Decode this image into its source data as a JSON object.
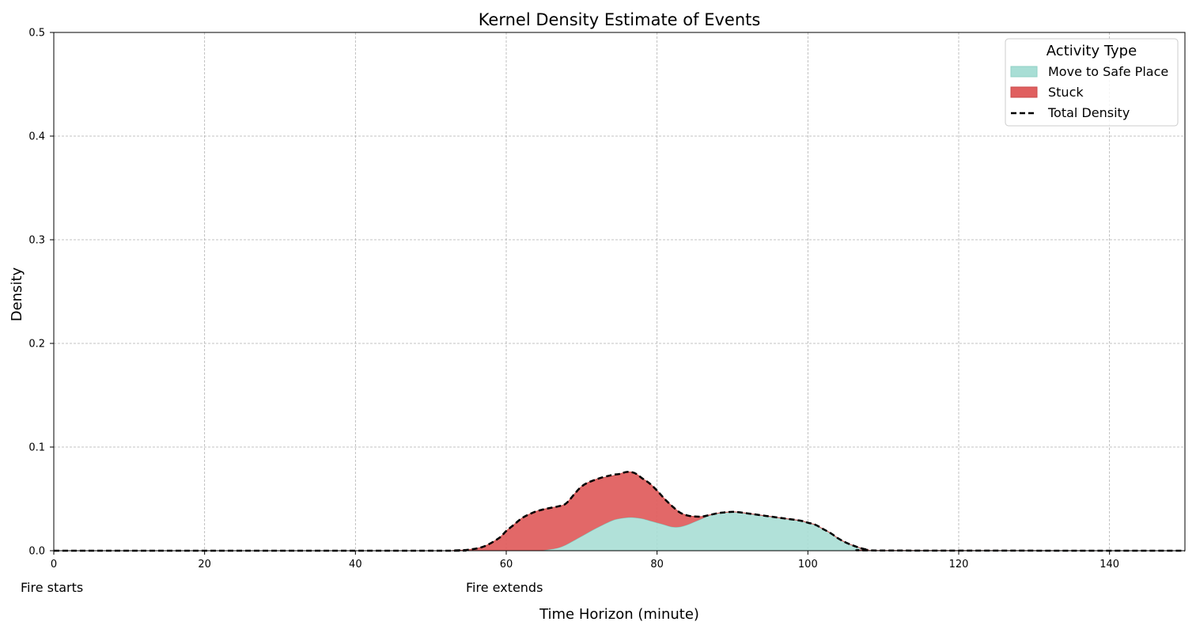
{
  "chart_data": {
    "type": "area",
    "title": "Kernel Density Estimate of Events",
    "xlabel": "Time Horizon (minute)",
    "ylabel": "Density",
    "xlim": [
      0,
      150
    ],
    "ylim": [
      0,
      0.5
    ],
    "x_ticks": [
      0,
      20,
      40,
      60,
      80,
      100,
      120,
      140
    ],
    "y_ticks": [
      0.0,
      0.1,
      0.2,
      0.3,
      0.4,
      0.5
    ],
    "x_tick_labels": [
      "0",
      "20",
      "40",
      "60",
      "80",
      "100",
      "120",
      "140"
    ],
    "y_tick_labels": [
      "0.0",
      "0.1",
      "0.2",
      "0.3",
      "0.4",
      "0.5"
    ],
    "grid": true,
    "stacked": true,
    "legend": {
      "title": "Activity Type",
      "placement": "top-right",
      "entries": [
        {
          "label": "Move to Safe Place",
          "kind": "fill",
          "color": "#a8ded5"
        },
        {
          "label": "Stuck",
          "kind": "fill",
          "color": "#e06060"
        },
        {
          "label": "Total Density",
          "kind": "dashed-line",
          "color": "#000000"
        }
      ]
    },
    "annotations": [
      {
        "text": "Fire starts",
        "x": 0
      },
      {
        "text": "Fire extends",
        "x": 60
      }
    ],
    "x": [
      0,
      50,
      53,
      55,
      57,
      59,
      60,
      61,
      62,
      63,
      64,
      65,
      66,
      67,
      68,
      70,
      72,
      74,
      75,
      76,
      77,
      78,
      79,
      80,
      81,
      82,
      83,
      84,
      85,
      86,
      87,
      88,
      89,
      90,
      91,
      92,
      93,
      95,
      97,
      99,
      100,
      101,
      102,
      103,
      104,
      105,
      106,
      107,
      108,
      110,
      150
    ],
    "series": [
      {
        "name": "Move to Safe Place",
        "color": "#a8ded5",
        "values": [
          0,
          0,
          0,
          0,
          0,
          0,
          0,
          0,
          0,
          0,
          0,
          0.0005,
          0.0015,
          0.003,
          0.006,
          0.014,
          0.022,
          0.029,
          0.031,
          0.032,
          0.032,
          0.031,
          0.029,
          0.027,
          0.025,
          0.023,
          0.023,
          0.025,
          0.028,
          0.031,
          0.034,
          0.036,
          0.037,
          0.0375,
          0.037,
          0.036,
          0.035,
          0.033,
          0.031,
          0.029,
          0.027,
          0.025,
          0.021,
          0.017,
          0.012,
          0.008,
          0.005,
          0.0025,
          0.001,
          0.0002,
          0
        ]
      },
      {
        "name": "Stuck",
        "color": "#e06060",
        "values": [
          0,
          0,
          0.0003,
          0.001,
          0.004,
          0.012,
          0.019,
          0.025,
          0.031,
          0.035,
          0.038,
          0.0395,
          0.04,
          0.04,
          0.04,
          0.048,
          0.047,
          0.043,
          0.043,
          0.044,
          0.043,
          0.039,
          0.036,
          0.031,
          0.025,
          0.02,
          0.014,
          0.009,
          0.005,
          0.002,
          0.0005,
          0.0001,
          0,
          0,
          0,
          0,
          0,
          0,
          0,
          0,
          0,
          0,
          0,
          0,
          0,
          0,
          0,
          0,
          0,
          0,
          0
        ]
      }
    ],
    "total_density": {
      "name": "Total Density",
      "color": "#000000",
      "values": [
        0,
        0,
        0.0003,
        0.001,
        0.004,
        0.012,
        0.019,
        0.025,
        0.031,
        0.035,
        0.038,
        0.04,
        0.0415,
        0.043,
        0.046,
        0.062,
        0.069,
        0.073,
        0.074,
        0.076,
        0.075,
        0.07,
        0.065,
        0.058,
        0.05,
        0.043,
        0.037,
        0.034,
        0.033,
        0.033,
        0.0345,
        0.0361,
        0.037,
        0.0375,
        0.037,
        0.036,
        0.035,
        0.033,
        0.031,
        0.029,
        0.027,
        0.025,
        0.021,
        0.017,
        0.012,
        0.008,
        0.005,
        0.0025,
        0.001,
        0.0002,
        0
      ]
    }
  }
}
